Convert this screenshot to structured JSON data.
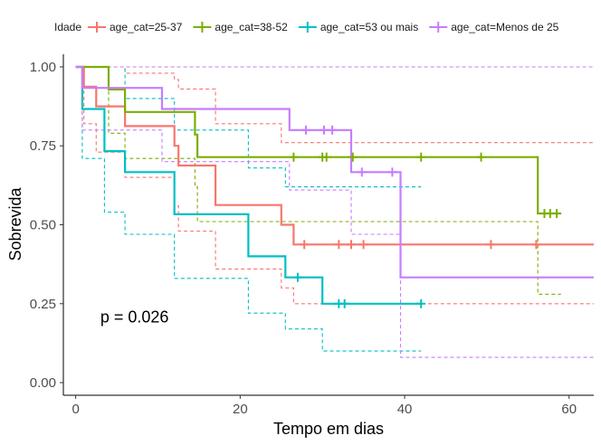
{
  "chart_data": {
    "type": "line",
    "subtype": "kaplan-meier",
    "title": "",
    "xlabel": "Tempo em dias",
    "ylabel": "Sobrevida",
    "xlim": [
      -1.5,
      63
    ],
    "ylim": [
      -0.04,
      1.04
    ],
    "x_ticks": [
      0,
      20,
      40,
      60
    ],
    "y_ticks": [
      0.0,
      0.25,
      0.5,
      0.75,
      1.0
    ],
    "x_tick_labels": [
      "0",
      "20",
      "40",
      "60"
    ],
    "y_tick_labels": [
      "0.00",
      "0.25",
      "0.50",
      "0.75",
      "1.00"
    ],
    "grid": false,
    "legend_title": "Idade",
    "legend_position": "top",
    "annotation": {
      "text": "p = 0.026",
      "x": 3,
      "y": 0.19
    },
    "series": [
      {
        "name": "age_cat=25-37",
        "color": "#F8766D",
        "steps": [
          [
            0,
            1.0
          ],
          [
            1,
            0.9375
          ],
          [
            2.5,
            0.875
          ],
          [
            6,
            0.8125
          ],
          [
            12,
            0.75
          ],
          [
            12.5,
            0.6875
          ],
          [
            17,
            0.5625
          ],
          [
            25,
            0.5
          ],
          [
            26.5,
            0.4375
          ],
          [
            63,
            0.4375
          ]
        ],
        "censors": [
          [
            27.8,
            0.4375
          ],
          [
            32,
            0.4375
          ],
          [
            33.5,
            0.4375
          ],
          [
            35,
            0.4375
          ],
          [
            50.5,
            0.4375
          ],
          [
            56,
            0.4375
          ]
        ],
        "ci_upper": [
          [
            0,
            1.0
          ],
          [
            2.5,
            1.0
          ],
          [
            6,
            0.98
          ],
          [
            12,
            0.96
          ],
          [
            12.5,
            0.93
          ],
          [
            17,
            0.82
          ],
          [
            25,
            0.76
          ],
          [
            26.5,
            0.76
          ],
          [
            63,
            0.76
          ]
        ],
        "ci_lower": [
          [
            0,
            1.0
          ],
          [
            1,
            0.82
          ],
          [
            2.5,
            0.73
          ],
          [
            6,
            0.65
          ],
          [
            12,
            0.56
          ],
          [
            12.5,
            0.48
          ],
          [
            17,
            0.36
          ],
          [
            25,
            0.3
          ],
          [
            26.5,
            0.25
          ],
          [
            63,
            0.25
          ]
        ]
      },
      {
        "name": "age_cat=38-52",
        "color": "#7CAE00",
        "steps": [
          [
            0,
            1.0
          ],
          [
            4,
            0.9286
          ],
          [
            6,
            0.8571
          ],
          [
            14.5,
            0.7857
          ],
          [
            14.8,
            0.7143
          ],
          [
            56,
            0.7143
          ],
          [
            56.2,
            0.5357
          ],
          [
            59,
            0.5357
          ]
        ],
        "censors": [
          [
            26.5,
            0.7143
          ],
          [
            30,
            0.7143
          ],
          [
            30.5,
            0.7143
          ],
          [
            33.7,
            0.7143
          ],
          [
            42,
            0.7143
          ],
          [
            49.3,
            0.7143
          ],
          [
            57,
            0.5357
          ],
          [
            57.7,
            0.5357
          ],
          [
            58.5,
            0.5357
          ]
        ],
        "ci_upper": [
          [
            0,
            1.0
          ],
          [
            57,
            1.0
          ],
          [
            59,
            1.0
          ]
        ],
        "ci_lower": [
          [
            0,
            1.0
          ],
          [
            4,
            0.79
          ],
          [
            6,
            0.71
          ],
          [
            14.5,
            0.62
          ],
          [
            14.8,
            0.51
          ],
          [
            56,
            0.51
          ],
          [
            56.2,
            0.28
          ],
          [
            59,
            0.28
          ]
        ]
      },
      {
        "name": "age_cat=53 ou mais",
        "color": "#00BFC4",
        "steps": [
          [
            0,
            1.0
          ],
          [
            0.8,
            0.8667
          ],
          [
            3.5,
            0.7333
          ],
          [
            6,
            0.6667
          ],
          [
            12,
            0.5333
          ],
          [
            21,
            0.4
          ],
          [
            25.5,
            0.3333
          ],
          [
            30,
            0.25
          ],
          [
            42,
            0.25
          ]
        ],
        "censors": [
          [
            27,
            0.3333
          ],
          [
            32,
            0.25
          ],
          [
            32.7,
            0.25
          ],
          [
            42,
            0.25
          ]
        ],
        "ci_upper": [
          [
            0,
            1.0
          ],
          [
            0.8,
            1.0
          ],
          [
            6,
            0.9
          ],
          [
            12,
            0.8
          ],
          [
            21,
            0.68
          ],
          [
            25.5,
            0.62
          ],
          [
            30,
            0.62
          ],
          [
            42,
            0.62
          ]
        ],
        "ci_lower": [
          [
            0,
            1.0
          ],
          [
            0.8,
            0.71
          ],
          [
            3.5,
            0.54
          ],
          [
            6,
            0.47
          ],
          [
            12,
            0.33
          ],
          [
            21,
            0.22
          ],
          [
            25.5,
            0.17
          ],
          [
            30,
            0.1
          ],
          [
            42,
            0.1
          ]
        ]
      },
      {
        "name": "age_cat=Menos de 25",
        "color": "#C77CFF",
        "steps": [
          [
            0,
            1.0
          ],
          [
            0.8,
            0.9333
          ],
          [
            7.5,
            0.9333
          ],
          [
            10.5,
            0.8667
          ],
          [
            26,
            0.8
          ],
          [
            33.5,
            0.6667
          ],
          [
            39.5,
            0.3333
          ],
          [
            63,
            0.3333
          ]
        ],
        "censors": [
          [
            28,
            0.8
          ],
          [
            30.2,
            0.8
          ],
          [
            31.2,
            0.8
          ],
          [
            34.8,
            0.6667
          ],
          [
            38.5,
            0.6667
          ]
        ],
        "ci_upper": [
          [
            0,
            1.0
          ],
          [
            63,
            1.0
          ]
        ],
        "ci_lower": [
          [
            0,
            1.0
          ],
          [
            0.8,
            0.8
          ],
          [
            7.5,
            0.8
          ],
          [
            10.5,
            0.7
          ],
          [
            26,
            0.61
          ],
          [
            33.5,
            0.47
          ],
          [
            39.5,
            0.08
          ],
          [
            63,
            0.08
          ]
        ]
      }
    ]
  }
}
